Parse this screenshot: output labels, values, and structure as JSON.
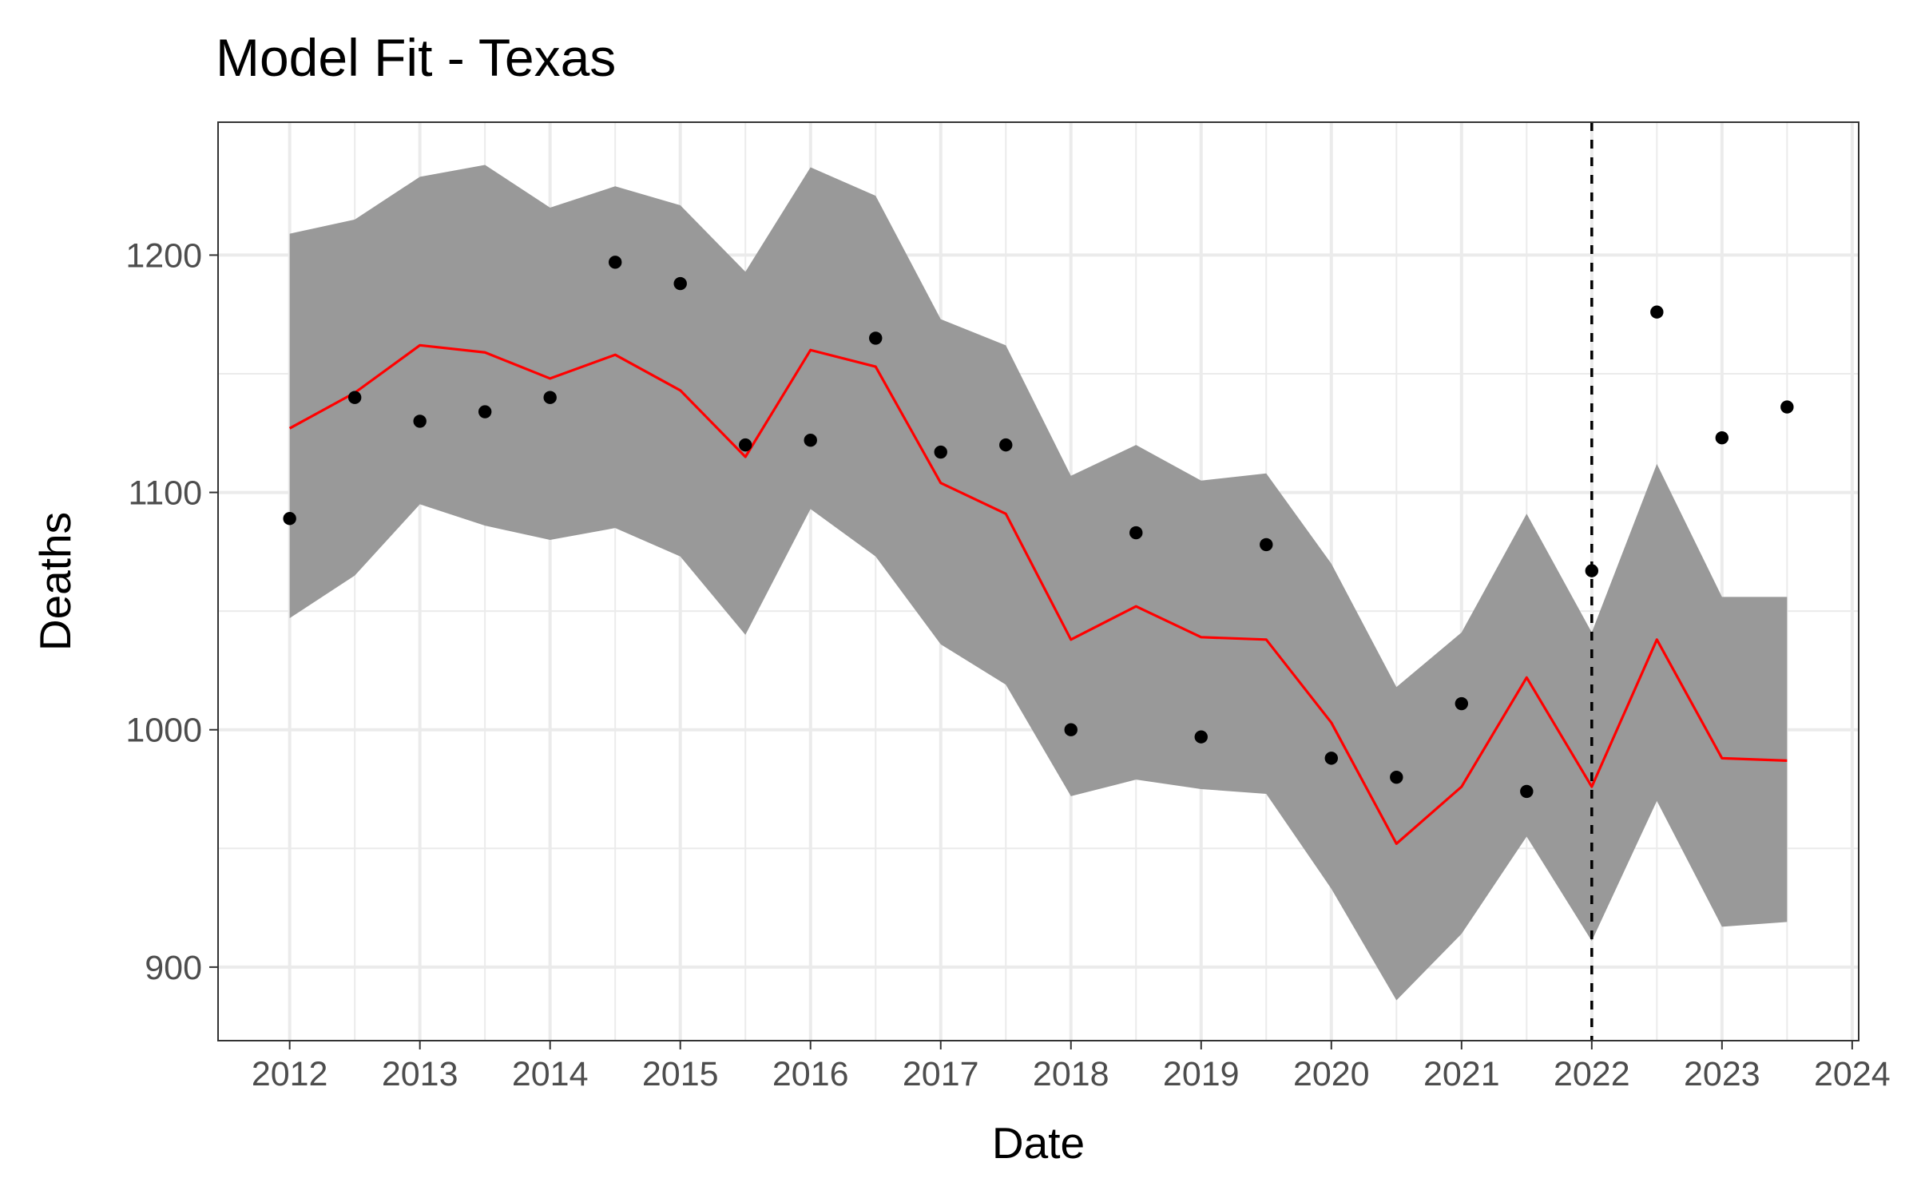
{
  "chart_data": {
    "type": "line",
    "title": "Model Fit - Texas",
    "xlabel": "Date",
    "ylabel": "Deaths",
    "xlim": [
      2011.45,
      2024.05
    ],
    "ylim": [
      869,
      1256
    ],
    "x_ticks": [
      "2012",
      "2013",
      "2014",
      "2015",
      "2016",
      "2017",
      "2018",
      "2019",
      "2020",
      "2021",
      "2022",
      "2023",
      "2024"
    ],
    "y_ticks": [
      "900",
      "1000",
      "1100",
      "1200"
    ],
    "grid": true,
    "legend": "none",
    "x": [
      2012.0,
      2012.5,
      2013.0,
      2013.5,
      2014.0,
      2014.5,
      2015.0,
      2015.5,
      2016.0,
      2016.5,
      2017.0,
      2017.5,
      2018.0,
      2018.5,
      2019.0,
      2019.5,
      2020.0,
      2020.5,
      2021.0,
      2021.5,
      2022.0,
      2022.5,
      2023.0,
      2023.5
    ],
    "series": [
      {
        "type": "point",
        "values": [
          1089,
          1140,
          1130,
          1134,
          1140,
          1197,
          1188,
          1120,
          1122,
          1165,
          1117,
          1120,
          1000,
          1083,
          997,
          1078,
          988,
          980,
          1011,
          974,
          1067,
          1176,
          1123,
          1136
        ],
        "color": "#000000"
      },
      {
        "type": "line",
        "values": [
          1127,
          1142,
          1162,
          1159,
          1148,
          1158,
          1143,
          1115,
          1160,
          1153,
          1104,
          1091,
          1038,
          1052,
          1039,
          1038,
          1003,
          952,
          976,
          1022,
          976,
          1038,
          988,
          987
        ],
        "color": "#ff0000"
      },
      {
        "type": "ribbon",
        "lower": [
          1047,
          1065,
          1095,
          1086,
          1080,
          1085,
          1073,
          1040,
          1093,
          1073,
          1036,
          1019,
          972,
          979,
          975,
          973,
          933,
          886,
          914,
          955,
          911,
          970,
          917,
          919
        ],
        "upper": [
          1209,
          1215,
          1233,
          1238,
          1220,
          1229,
          1221,
          1193,
          1237,
          1225,
          1173,
          1162,
          1107,
          1120,
          1105,
          1108,
          1070,
          1018,
          1041,
          1091,
          1041,
          1112,
          1056,
          1056
        ],
        "color": "#999999"
      }
    ],
    "vline": {
      "x": 2022,
      "style": "dashed",
      "color": "#000000"
    }
  }
}
